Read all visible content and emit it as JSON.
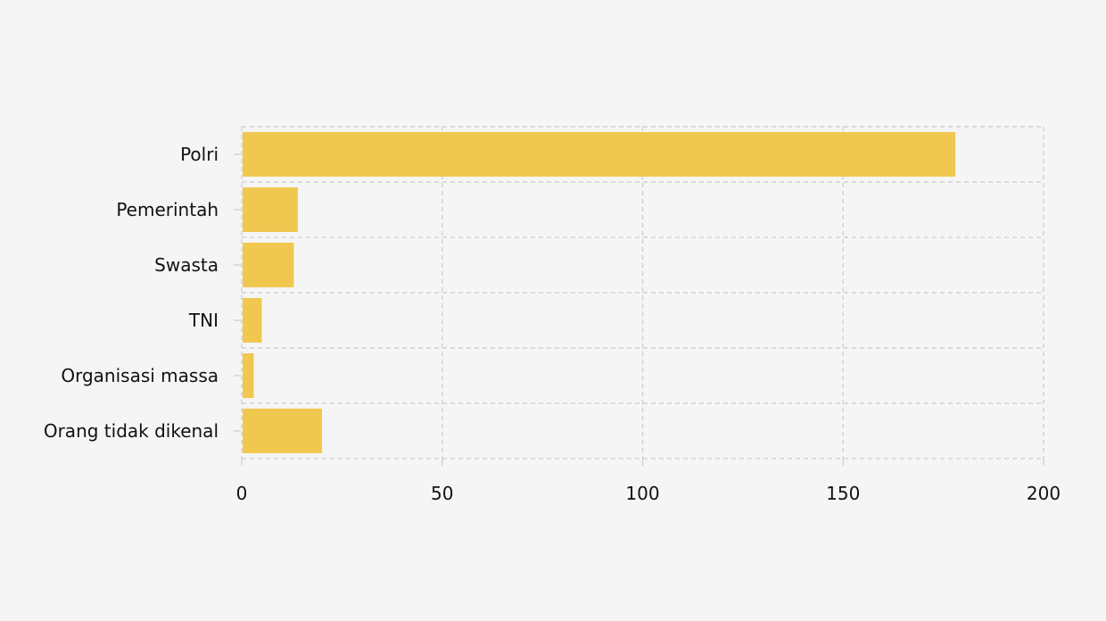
{
  "chart_data": {
    "type": "bar",
    "orientation": "horizontal",
    "categories": [
      "Polri",
      "Pemerintah",
      "Swasta",
      "TNI",
      "Organisasi massa",
      "Orang tidak dikenal"
    ],
    "values": [
      178,
      14,
      13,
      5,
      3,
      20
    ],
    "xlim": [
      0,
      200
    ],
    "x_ticks": [
      0,
      50,
      100,
      150,
      200
    ],
    "grid": true,
    "grid_style": "dashed",
    "bar_color": "#f0c850",
    "background_color": "#f5f5f5"
  }
}
